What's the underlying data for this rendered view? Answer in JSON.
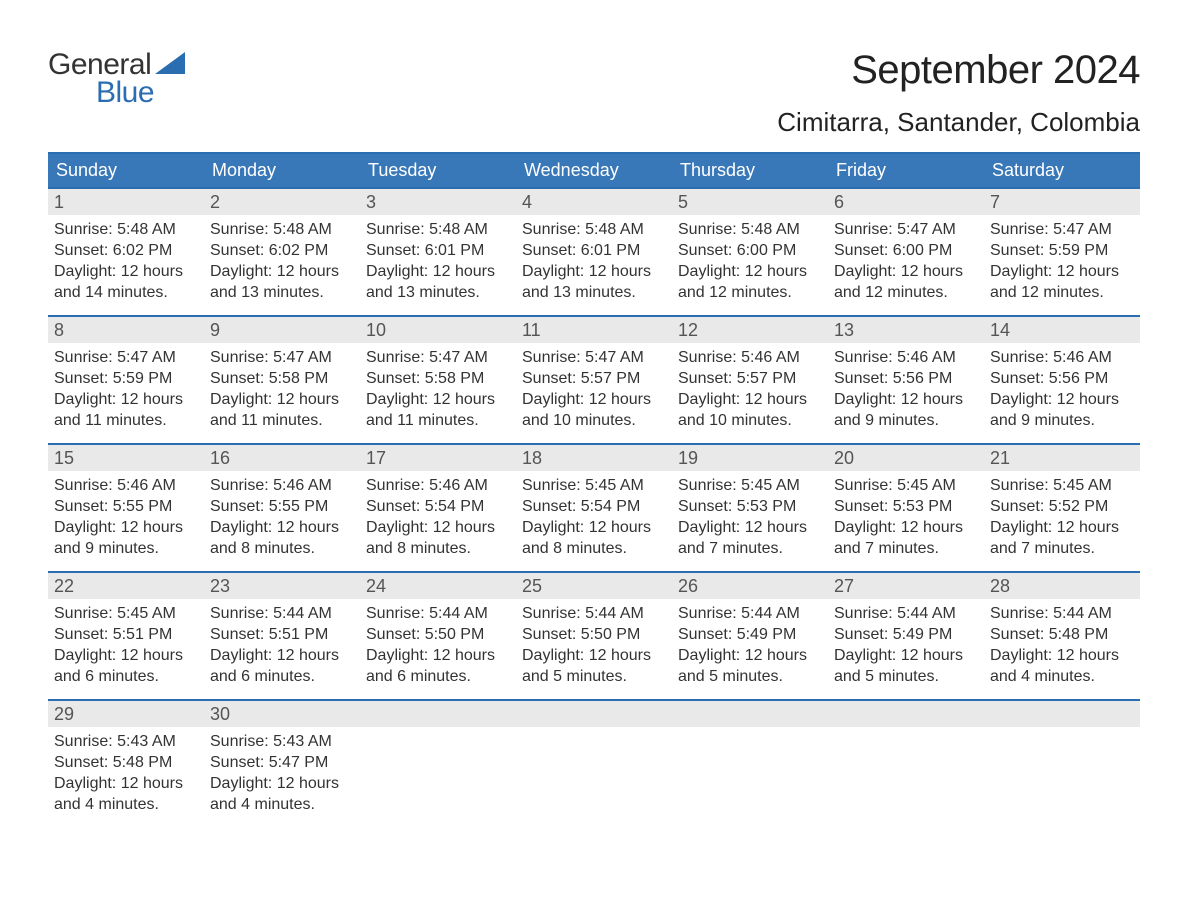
{
  "brand": {
    "word1": "General",
    "word2": "Blue",
    "word1_color": "#333333",
    "word2_color": "#2a6db0",
    "sail_color": "#2a6db0",
    "font_size": 30
  },
  "title": {
    "month": "September 2024",
    "location": "Cimitarra, Santander, Colombia",
    "month_fontsize": 40,
    "location_fontsize": 26,
    "color": "#222222"
  },
  "calendar": {
    "header_bg": "#3978b8",
    "header_text_color": "#ffffff",
    "row_border_color": "#2a6db0",
    "daynum_bg": "#e9e9e9",
    "daynum_color": "#555555",
    "body_text_color": "#333333",
    "body_fontsize": 16,
    "columns": [
      "Sunday",
      "Monday",
      "Tuesday",
      "Wednesday",
      "Thursday",
      "Friday",
      "Saturday"
    ],
    "weeks": [
      [
        {
          "day": "1",
          "sunrise": "Sunrise: 5:48 AM",
          "sunset": "Sunset: 6:02 PM",
          "daylight1": "Daylight: 12 hours",
          "daylight2": "and 14 minutes."
        },
        {
          "day": "2",
          "sunrise": "Sunrise: 5:48 AM",
          "sunset": "Sunset: 6:02 PM",
          "daylight1": "Daylight: 12 hours",
          "daylight2": "and 13 minutes."
        },
        {
          "day": "3",
          "sunrise": "Sunrise: 5:48 AM",
          "sunset": "Sunset: 6:01 PM",
          "daylight1": "Daylight: 12 hours",
          "daylight2": "and 13 minutes."
        },
        {
          "day": "4",
          "sunrise": "Sunrise: 5:48 AM",
          "sunset": "Sunset: 6:01 PM",
          "daylight1": "Daylight: 12 hours",
          "daylight2": "and 13 minutes."
        },
        {
          "day": "5",
          "sunrise": "Sunrise: 5:48 AM",
          "sunset": "Sunset: 6:00 PM",
          "daylight1": "Daylight: 12 hours",
          "daylight2": "and 12 minutes."
        },
        {
          "day": "6",
          "sunrise": "Sunrise: 5:47 AM",
          "sunset": "Sunset: 6:00 PM",
          "daylight1": "Daylight: 12 hours",
          "daylight2": "and 12 minutes."
        },
        {
          "day": "7",
          "sunrise": "Sunrise: 5:47 AM",
          "sunset": "Sunset: 5:59 PM",
          "daylight1": "Daylight: 12 hours",
          "daylight2": "and 12 minutes."
        }
      ],
      [
        {
          "day": "8",
          "sunrise": "Sunrise: 5:47 AM",
          "sunset": "Sunset: 5:59 PM",
          "daylight1": "Daylight: 12 hours",
          "daylight2": "and 11 minutes."
        },
        {
          "day": "9",
          "sunrise": "Sunrise: 5:47 AM",
          "sunset": "Sunset: 5:58 PM",
          "daylight1": "Daylight: 12 hours",
          "daylight2": "and 11 minutes."
        },
        {
          "day": "10",
          "sunrise": "Sunrise: 5:47 AM",
          "sunset": "Sunset: 5:58 PM",
          "daylight1": "Daylight: 12 hours",
          "daylight2": "and 11 minutes."
        },
        {
          "day": "11",
          "sunrise": "Sunrise: 5:47 AM",
          "sunset": "Sunset: 5:57 PM",
          "daylight1": "Daylight: 12 hours",
          "daylight2": "and 10 minutes."
        },
        {
          "day": "12",
          "sunrise": "Sunrise: 5:46 AM",
          "sunset": "Sunset: 5:57 PM",
          "daylight1": "Daylight: 12 hours",
          "daylight2": "and 10 minutes."
        },
        {
          "day": "13",
          "sunrise": "Sunrise: 5:46 AM",
          "sunset": "Sunset: 5:56 PM",
          "daylight1": "Daylight: 12 hours",
          "daylight2": "and 9 minutes."
        },
        {
          "day": "14",
          "sunrise": "Sunrise: 5:46 AM",
          "sunset": "Sunset: 5:56 PM",
          "daylight1": "Daylight: 12 hours",
          "daylight2": "and 9 minutes."
        }
      ],
      [
        {
          "day": "15",
          "sunrise": "Sunrise: 5:46 AM",
          "sunset": "Sunset: 5:55 PM",
          "daylight1": "Daylight: 12 hours",
          "daylight2": "and 9 minutes."
        },
        {
          "day": "16",
          "sunrise": "Sunrise: 5:46 AM",
          "sunset": "Sunset: 5:55 PM",
          "daylight1": "Daylight: 12 hours",
          "daylight2": "and 8 minutes."
        },
        {
          "day": "17",
          "sunrise": "Sunrise: 5:46 AM",
          "sunset": "Sunset: 5:54 PM",
          "daylight1": "Daylight: 12 hours",
          "daylight2": "and 8 minutes."
        },
        {
          "day": "18",
          "sunrise": "Sunrise: 5:45 AM",
          "sunset": "Sunset: 5:54 PM",
          "daylight1": "Daylight: 12 hours",
          "daylight2": "and 8 minutes."
        },
        {
          "day": "19",
          "sunrise": "Sunrise: 5:45 AM",
          "sunset": "Sunset: 5:53 PM",
          "daylight1": "Daylight: 12 hours",
          "daylight2": "and 7 minutes."
        },
        {
          "day": "20",
          "sunrise": "Sunrise: 5:45 AM",
          "sunset": "Sunset: 5:53 PM",
          "daylight1": "Daylight: 12 hours",
          "daylight2": "and 7 minutes."
        },
        {
          "day": "21",
          "sunrise": "Sunrise: 5:45 AM",
          "sunset": "Sunset: 5:52 PM",
          "daylight1": "Daylight: 12 hours",
          "daylight2": "and 7 minutes."
        }
      ],
      [
        {
          "day": "22",
          "sunrise": "Sunrise: 5:45 AM",
          "sunset": "Sunset: 5:51 PM",
          "daylight1": "Daylight: 12 hours",
          "daylight2": "and 6 minutes."
        },
        {
          "day": "23",
          "sunrise": "Sunrise: 5:44 AM",
          "sunset": "Sunset: 5:51 PM",
          "daylight1": "Daylight: 12 hours",
          "daylight2": "and 6 minutes."
        },
        {
          "day": "24",
          "sunrise": "Sunrise: 5:44 AM",
          "sunset": "Sunset: 5:50 PM",
          "daylight1": "Daylight: 12 hours",
          "daylight2": "and 6 minutes."
        },
        {
          "day": "25",
          "sunrise": "Sunrise: 5:44 AM",
          "sunset": "Sunset: 5:50 PM",
          "daylight1": "Daylight: 12 hours",
          "daylight2": "and 5 minutes."
        },
        {
          "day": "26",
          "sunrise": "Sunrise: 5:44 AM",
          "sunset": "Sunset: 5:49 PM",
          "daylight1": "Daylight: 12 hours",
          "daylight2": "and 5 minutes."
        },
        {
          "day": "27",
          "sunrise": "Sunrise: 5:44 AM",
          "sunset": "Sunset: 5:49 PM",
          "daylight1": "Daylight: 12 hours",
          "daylight2": "and 5 minutes."
        },
        {
          "day": "28",
          "sunrise": "Sunrise: 5:44 AM",
          "sunset": "Sunset: 5:48 PM",
          "daylight1": "Daylight: 12 hours",
          "daylight2": "and 4 minutes."
        }
      ],
      [
        {
          "day": "29",
          "sunrise": "Sunrise: 5:43 AM",
          "sunset": "Sunset: 5:48 PM",
          "daylight1": "Daylight: 12 hours",
          "daylight2": "and 4 minutes."
        },
        {
          "day": "30",
          "sunrise": "Sunrise: 5:43 AM",
          "sunset": "Sunset: 5:47 PM",
          "daylight1": "Daylight: 12 hours",
          "daylight2": "and 4 minutes."
        },
        {
          "empty": true
        },
        {
          "empty": true
        },
        {
          "empty": true
        },
        {
          "empty": true
        },
        {
          "empty": true
        }
      ]
    ]
  }
}
